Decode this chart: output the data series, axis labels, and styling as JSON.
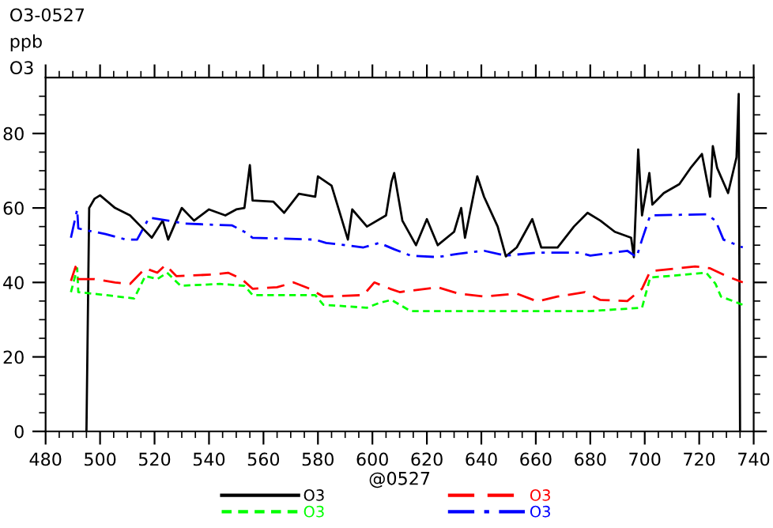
{
  "chart_data": {
    "type": "line",
    "title": "O3-0527",
    "ylabel": "ppb",
    "subtitle": "O3",
    "xlabel": "@0527",
    "xlim": [
      480,
      740
    ],
    "ylim": [
      0,
      95
    ],
    "xticks": [
      480,
      {
        "value": 485,
        "label": null
      },
      {
        "value": 490,
        "label": null
      },
      {
        "value": 495,
        "label": null
      },
      500,
      {
        "value": 505,
        "label": null
      },
      {
        "value": 510,
        "label": null
      },
      {
        "value": 515,
        "label": null
      },
      520,
      {
        "value": 525,
        "label": null
      },
      {
        "value": 530,
        "label": null
      },
      {
        "value": 535,
        "label": null
      },
      540,
      {
        "value": 545,
        "label": null
      },
      {
        "value": 550,
        "label": null
      },
      {
        "value": 555,
        "label": null
      },
      560,
      {
        "value": 565,
        "label": null
      },
      {
        "value": 570,
        "label": null
      },
      {
        "value": 575,
        "label": null
      },
      580,
      {
        "value": 585,
        "label": null
      },
      {
        "value": 590,
        "label": null
      },
      {
        "value": 595,
        "label": null
      },
      600,
      {
        "value": 605,
        "label": null
      },
      {
        "value": 610,
        "label": null
      },
      {
        "value": 615,
        "label": null
      },
      620,
      {
        "value": 625,
        "label": null
      },
      {
        "value": 630,
        "label": null
      },
      {
        "value": 635,
        "label": null
      },
      640,
      {
        "value": 645,
        "label": null
      },
      {
        "value": 650,
        "label": null
      },
      {
        "value": 655,
        "label": null
      },
      660,
      {
        "value": 665,
        "label": null
      },
      {
        "value": 670,
        "label": null
      },
      {
        "value": 675,
        "label": null
      },
      680,
      {
        "value": 685,
        "label": null
      },
      {
        "value": 690,
        "label": null
      },
      {
        "value": 695,
        "label": null
      },
      700,
      {
        "value": 705,
        "label": null
      },
      {
        "value": 710,
        "label": null
      },
      {
        "value": 715,
        "label": null
      },
      720,
      {
        "value": 725,
        "label": null
      },
      {
        "value": 730,
        "label": null
      },
      {
        "value": 735,
        "label": null
      },
      740
    ],
    "yticks": [
      0,
      {
        "value": 5,
        "label": null
      },
      {
        "value": 10,
        "label": null
      },
      {
        "value": 15,
        "label": null
      },
      20,
      {
        "value": 25,
        "label": null
      },
      {
        "value": 30,
        "label": null
      },
      {
        "value": 35,
        "label": null
      },
      40,
      {
        "value": 45,
        "label": null
      },
      {
        "value": 50,
        "label": null
      },
      {
        "value": 55,
        "label": null
      },
      60,
      {
        "value": 65,
        "label": null
      },
      {
        "value": 70,
        "label": null
      },
      {
        "value": 75,
        "label": null
      },
      80,
      {
        "value": 85,
        "label": null
      },
      {
        "value": 90,
        "label": null
      }
    ],
    "legend": "bottom",
    "grid": false,
    "series": [
      {
        "name": "O3",
        "color": "#000000",
        "line_style": "solid",
        "x": [
          495,
          496,
          498,
          500,
          505.5,
          511,
          515,
          519,
          523,
          525,
          530,
          534.5,
          540,
          546,
          550,
          553,
          555,
          556,
          563.6,
          567.6,
          573,
          579,
          580,
          585,
          591,
          592.6,
          598,
          605,
          607,
          608,
          611,
          616,
          620,
          624,
          630,
          632.6,
          634,
          638.5,
          641,
          646,
          649,
          653,
          658.7,
          662,
          668,
          674,
          679,
          683.7,
          689,
          695,
          696,
          697.6,
          699,
          701.7,
          702.8,
          707,
          712.7,
          716.8,
          721,
          724,
          725,
          726.6,
          730.6,
          733.7,
          734.5,
          735
        ],
        "values": [
          0,
          60,
          62.5,
          63.4,
          60,
          58,
          55,
          52,
          56.6,
          51.5,
          60,
          56.6,
          59.6,
          58,
          59.6,
          60,
          71.5,
          62,
          61.7,
          58.7,
          63.8,
          63,
          68.5,
          66,
          51.5,
          59.6,
          55,
          58,
          67,
          69.4,
          56.6,
          50,
          57,
          50,
          53.6,
          60,
          52,
          68.5,
          63,
          55,
          47,
          49.4,
          57,
          49.4,
          49.4,
          55,
          58.7,
          56.6,
          53.6,
          52,
          46.8,
          75.7,
          58,
          69.4,
          60.9,
          64,
          66.4,
          70.7,
          74.5,
          63,
          76.6,
          70.7,
          64,
          73.6,
          90.6,
          0
        ]
      },
      {
        "name": "O3",
        "color": "#00ff00",
        "line_style": "dotted",
        "x": [
          489.3,
          491.6,
          492,
          502,
          512.5,
          516.6,
          521,
          524.6,
          529.6,
          544,
          553,
          556,
          579,
          582,
          598,
          602.5,
          607,
          614,
          641,
          680,
          699,
          702,
          722.6,
          726,
          728,
          736
        ],
        "values": [
          37.4,
          43.8,
          37.4,
          36.6,
          35.7,
          41.7,
          40.9,
          42.6,
          39.1,
          39.6,
          39.1,
          36.6,
          36.6,
          34,
          33.2,
          34.5,
          35.3,
          32.3,
          32.3,
          32.3,
          33.2,
          41.3,
          42.6,
          39.6,
          36.2,
          34
        ]
      },
      {
        "name": "O3",
        "color": "#ff0000",
        "line_style": "dashed",
        "x": [
          489.3,
          491,
          492,
          498,
          505.5,
          511,
          516.6,
          521,
          524,
          528,
          541,
          547,
          552,
          556,
          565,
          571,
          577,
          582,
          596.7,
          600.7,
          606.5,
          610,
          624,
          631.5,
          641,
          653,
          660.5,
          668,
          678,
          683.7,
          693.6,
          699,
          702,
          718.5,
          724,
          730,
          736
        ],
        "values": [
          40.4,
          44.2,
          40.9,
          40.9,
          40,
          39.6,
          43.8,
          42.6,
          44.7,
          41.7,
          42.1,
          42.6,
          40.9,
          38.3,
          38.7,
          40,
          38.3,
          36.2,
          36.6,
          40,
          38.3,
          37.4,
          38.7,
          37,
          36.2,
          37,
          34.9,
          36.2,
          37.4,
          35.3,
          35,
          38.3,
          43,
          44.3,
          43.8,
          41.7,
          40
        ]
      },
      {
        "name": "O3",
        "color": "#0000ff",
        "line_style": "dashdot",
        "x": [
          489.3,
          491.6,
          492,
          495,
          502,
          509.6,
          513.6,
          518,
          525,
          531,
          548.5,
          553,
          556,
          579,
          583,
          596.7,
          602.5,
          608,
          614,
          624,
          631.5,
          641,
          649,
          660.5,
          676,
          680,
          693.6,
          697,
          699,
          702,
          722.6,
          726,
          728.9,
          736
        ],
        "values": [
          52,
          59.6,
          54.5,
          54,
          53,
          51.5,
          51.5,
          57.4,
          56.6,
          55.8,
          55.3,
          53.6,
          52,
          51.5,
          50.6,
          49.4,
          50.6,
          48.9,
          47.2,
          46.8,
          47.7,
          48.5,
          47.2,
          48,
          48,
          47.2,
          48.5,
          46.8,
          51.5,
          58,
          58.3,
          56.6,
          51.5,
          49.4
        ]
      }
    ]
  }
}
